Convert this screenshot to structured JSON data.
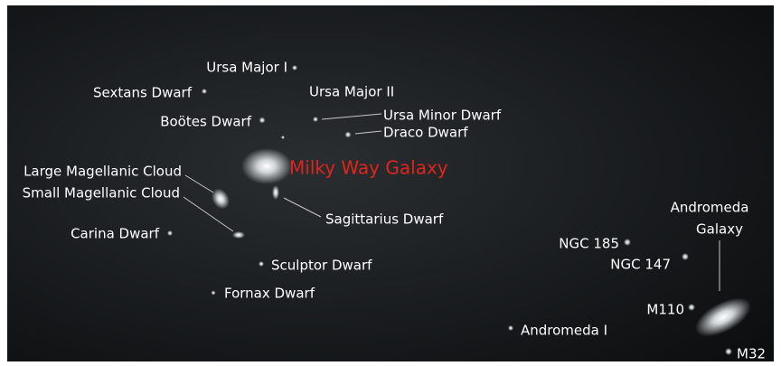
{
  "title": "Milky Way Galaxy",
  "labels": [
    "Ursa Major I",
    "Sextans Dwarf",
    "Ursa Major II",
    "Boötes Dwarf",
    "Ursa Minor Dwarf",
    "Draco Dwarf",
    "Large Magellanic Cloud",
    "Small Magellanic Cloud",
    "Sagittarius Dwarf",
    "Carina Dwarf",
    "NGC 185",
    "NGC 147",
    "Sculptor Dwarf",
    "Fornax Dwarf",
    "M110",
    "Andromeda I",
    "M32"
  ],
  "andromeda": [
    "Andromeda",
    "Galaxy"
  ]
}
